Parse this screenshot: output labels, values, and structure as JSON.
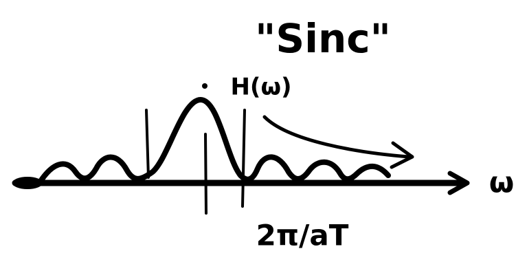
{
  "labels": {
    "title": "\"Sinc\"",
    "function": "H(ω)",
    "zero_crossing": "2π/aT",
    "axis": "ω"
  }
}
